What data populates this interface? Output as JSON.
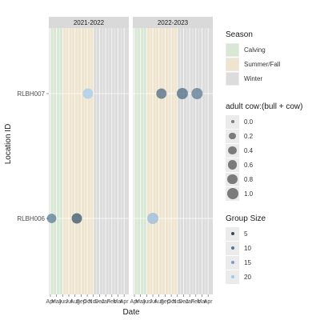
{
  "chart_data": {
    "type": "scatter",
    "xlabel": "Date",
    "ylabel": "Location ID",
    "facets": [
      "2021-2022",
      "2022-2023"
    ],
    "categories_y": [
      "RLBH006",
      "RLBH007"
    ],
    "x_tick_labels": [
      "Apr",
      "May",
      "Jun",
      "Jul",
      "Aug",
      "Sep",
      "Oct",
      "Nov",
      "Dec",
      "Jan",
      "Feb",
      "Mar",
      "Apr"
    ],
    "seasons": [
      {
        "name": "Calving",
        "start_month": 0,
        "end_month": 2.0,
        "color": "#d9e8d5"
      },
      {
        "name": "Summer/Fall",
        "start_month": 2.0,
        "end_month": 7.0,
        "color": "#efe5cf"
      },
      {
        "name": "Winter",
        "start_month": 7.0,
        "end_month": 12.0,
        "color": "#dcdcdc"
      }
    ],
    "points": [
      {
        "facet": "2021-2022",
        "location": "RLBH006",
        "month": 0.2,
        "ratio": 0.6,
        "group_size": 10
      },
      {
        "facet": "2021-2022",
        "location": "RLBH006",
        "month": 4.3,
        "ratio": 0.8,
        "group_size": 5
      },
      {
        "facet": "2021-2022",
        "location": "RLBH007",
        "month": 6.1,
        "ratio": 0.8,
        "group_size": 20
      },
      {
        "facet": "2022-2023",
        "location": "RLBH006",
        "month": 3.0,
        "ratio": 1.0,
        "group_size": 18
      },
      {
        "facet": "2022-2023",
        "location": "RLBH007",
        "month": 4.4,
        "ratio": 0.8,
        "group_size": 8
      },
      {
        "facet": "2022-2023",
        "location": "RLBH007",
        "month": 7.8,
        "ratio": 1.0,
        "group_size": 8
      },
      {
        "facet": "2022-2023",
        "location": "RLBH007",
        "month": 10.2,
        "ratio": 1.0,
        "group_size": 10
      }
    ],
    "legend": {
      "season_title": "Season",
      "season_items": [
        "Calving",
        "Summer/Fall",
        "Winter"
      ],
      "size_title": "adult cow:(bull + cow)",
      "size_items": [
        "0.0",
        "0.2",
        "0.4",
        "0.6",
        "0.8",
        "1.0"
      ],
      "size_values": [
        0.0,
        0.2,
        0.4,
        0.6,
        0.8,
        1.0
      ],
      "group_title": "Group Size",
      "group_items": [
        "5",
        "10",
        "15",
        "20"
      ],
      "group_values": [
        5,
        10,
        15,
        20
      ],
      "group_color_low": "#2c4a63",
      "group_color_high": "#9fc9ef"
    }
  }
}
